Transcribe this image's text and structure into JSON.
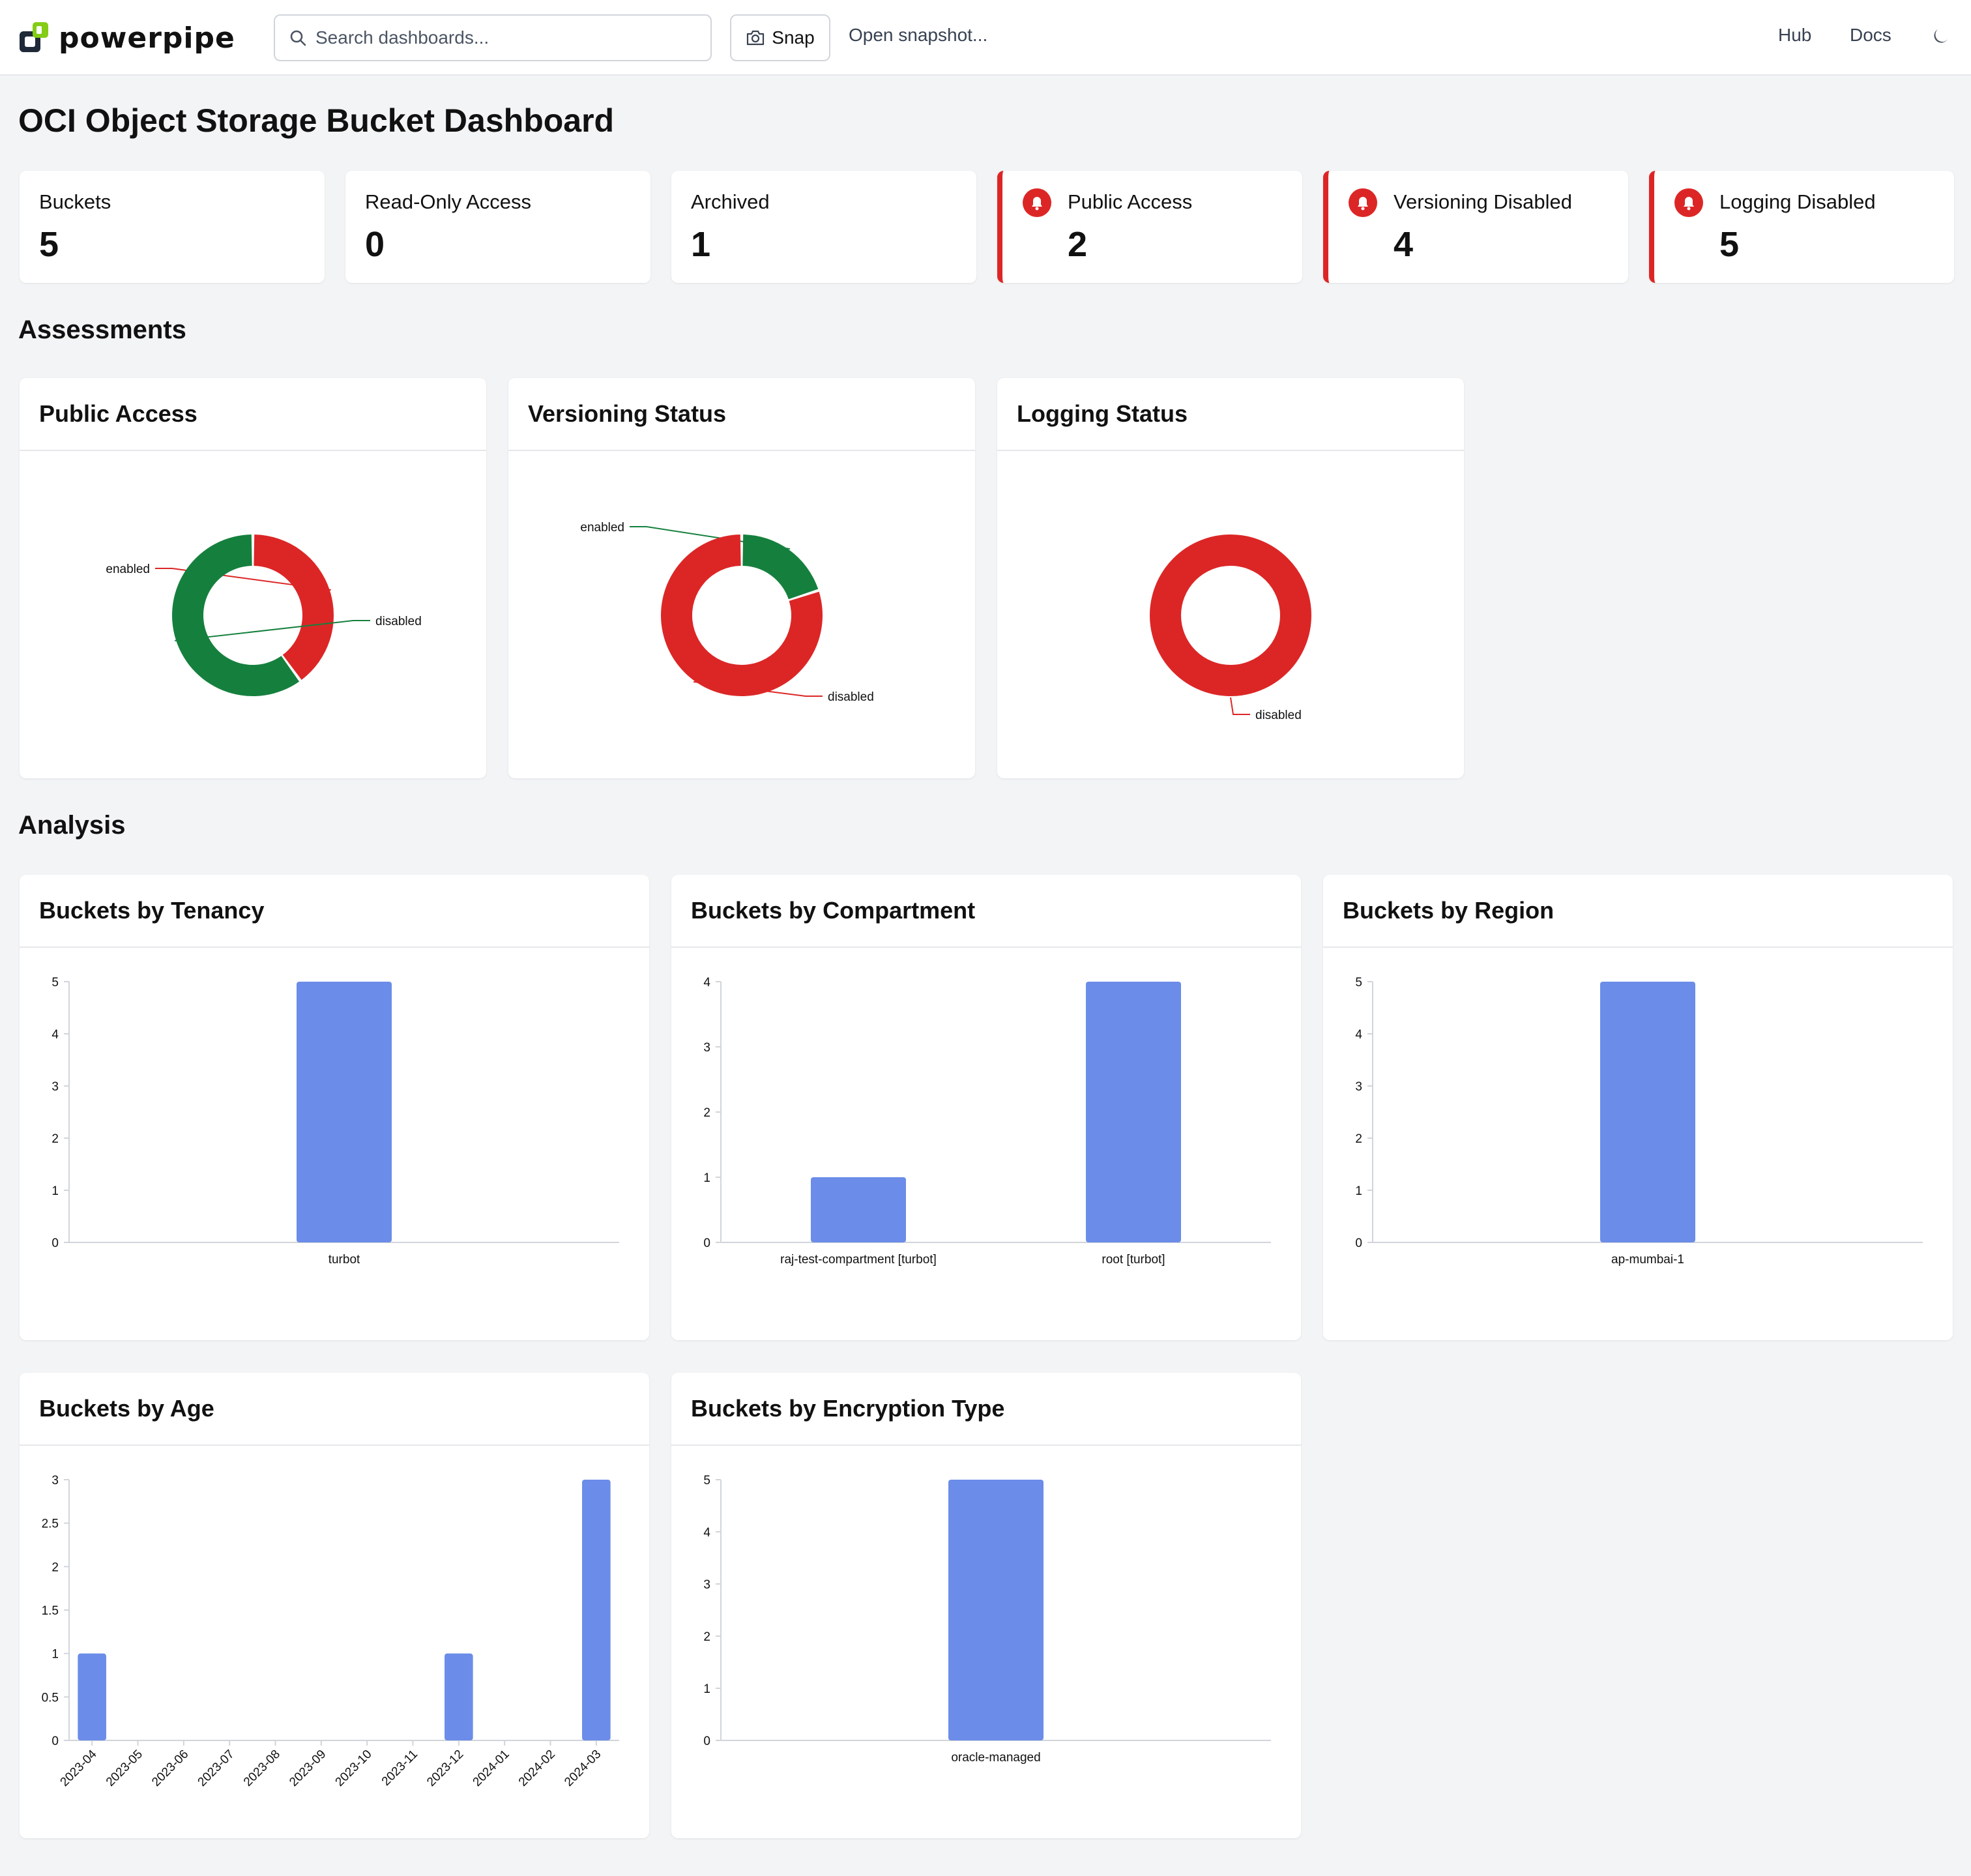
{
  "nav": {
    "logo_text": "powerpipe",
    "search_placeholder": "Search dashboards...",
    "snap_label": "Snap",
    "open_snapshot": "Open snapshot...",
    "hub": "Hub",
    "docs": "Docs"
  },
  "page": {
    "title": "OCI Object Storage Bucket Dashboard"
  },
  "cards": [
    {
      "label": "Buckets",
      "value": "5",
      "alert": false
    },
    {
      "label": "Read-Only Access",
      "value": "0",
      "alert": false
    },
    {
      "label": "Archived",
      "value": "1",
      "alert": false
    },
    {
      "label": "Public Access",
      "value": "2",
      "alert": true
    },
    {
      "label": "Versioning Disabled",
      "value": "4",
      "alert": true
    },
    {
      "label": "Logging Disabled",
      "value": "5",
      "alert": true
    }
  ],
  "sections": {
    "assessments": "Assessments",
    "analysis": "Analysis"
  },
  "colors": {
    "ok": "#15803d",
    "alert": "#dc2626",
    "bar": "#6b8ce8",
    "alert_border": "#dc2626"
  },
  "chart_data": [
    {
      "type": "pie",
      "title": "Public Access",
      "slices": [
        {
          "name": "enabled",
          "value": 2,
          "color": "#dc2626"
        },
        {
          "name": "disabled",
          "value": 3,
          "color": "#15803d"
        }
      ]
    },
    {
      "type": "pie",
      "title": "Versioning Status",
      "slices": [
        {
          "name": "enabled",
          "value": 1,
          "color": "#15803d"
        },
        {
          "name": "disabled",
          "value": 4,
          "color": "#dc2626"
        }
      ]
    },
    {
      "type": "pie",
      "title": "Logging Status",
      "slices": [
        {
          "name": "disabled",
          "value": 5,
          "color": "#dc2626"
        }
      ]
    },
    {
      "type": "bar",
      "title": "Buckets by Tenancy",
      "categories": [
        "turbot"
      ],
      "values": [
        5
      ],
      "ylim": [
        0,
        5
      ],
      "yticks": [
        "0",
        "1",
        "2",
        "3",
        "4",
        "5"
      ]
    },
    {
      "type": "bar",
      "title": "Buckets by Compartment",
      "categories": [
        "raj-test-compartment [turbot]",
        "root [turbot]"
      ],
      "values": [
        1,
        4
      ],
      "ylim": [
        0,
        4
      ],
      "yticks": [
        "0",
        "1",
        "2",
        "3",
        "4"
      ]
    },
    {
      "type": "bar",
      "title": "Buckets by Region",
      "categories": [
        "ap-mumbai-1"
      ],
      "values": [
        5
      ],
      "ylim": [
        0,
        5
      ],
      "yticks": [
        "0",
        "1",
        "2",
        "3",
        "4",
        "5"
      ]
    },
    {
      "type": "bar",
      "title": "Buckets by Age",
      "categories": [
        "2023-04",
        "2023-05",
        "2023-06",
        "2023-07",
        "2023-08",
        "2023-09",
        "2023-10",
        "2023-11",
        "2023-12",
        "2024-01",
        "2024-02",
        "2024-03"
      ],
      "values": [
        1,
        0,
        0,
        0,
        0,
        0,
        0,
        0,
        1,
        0,
        0,
        3
      ],
      "ylim": [
        0,
        3
      ],
      "yticks": [
        "0",
        "0.5",
        "1",
        "1.5",
        "2",
        "2.5",
        "3"
      ]
    },
    {
      "type": "bar",
      "title": "Buckets by Encryption Type",
      "categories": [
        "oracle-managed"
      ],
      "values": [
        5
      ],
      "ylim": [
        0,
        5
      ],
      "yticks": [
        "0",
        "1",
        "2",
        "3",
        "4",
        "5"
      ]
    }
  ]
}
